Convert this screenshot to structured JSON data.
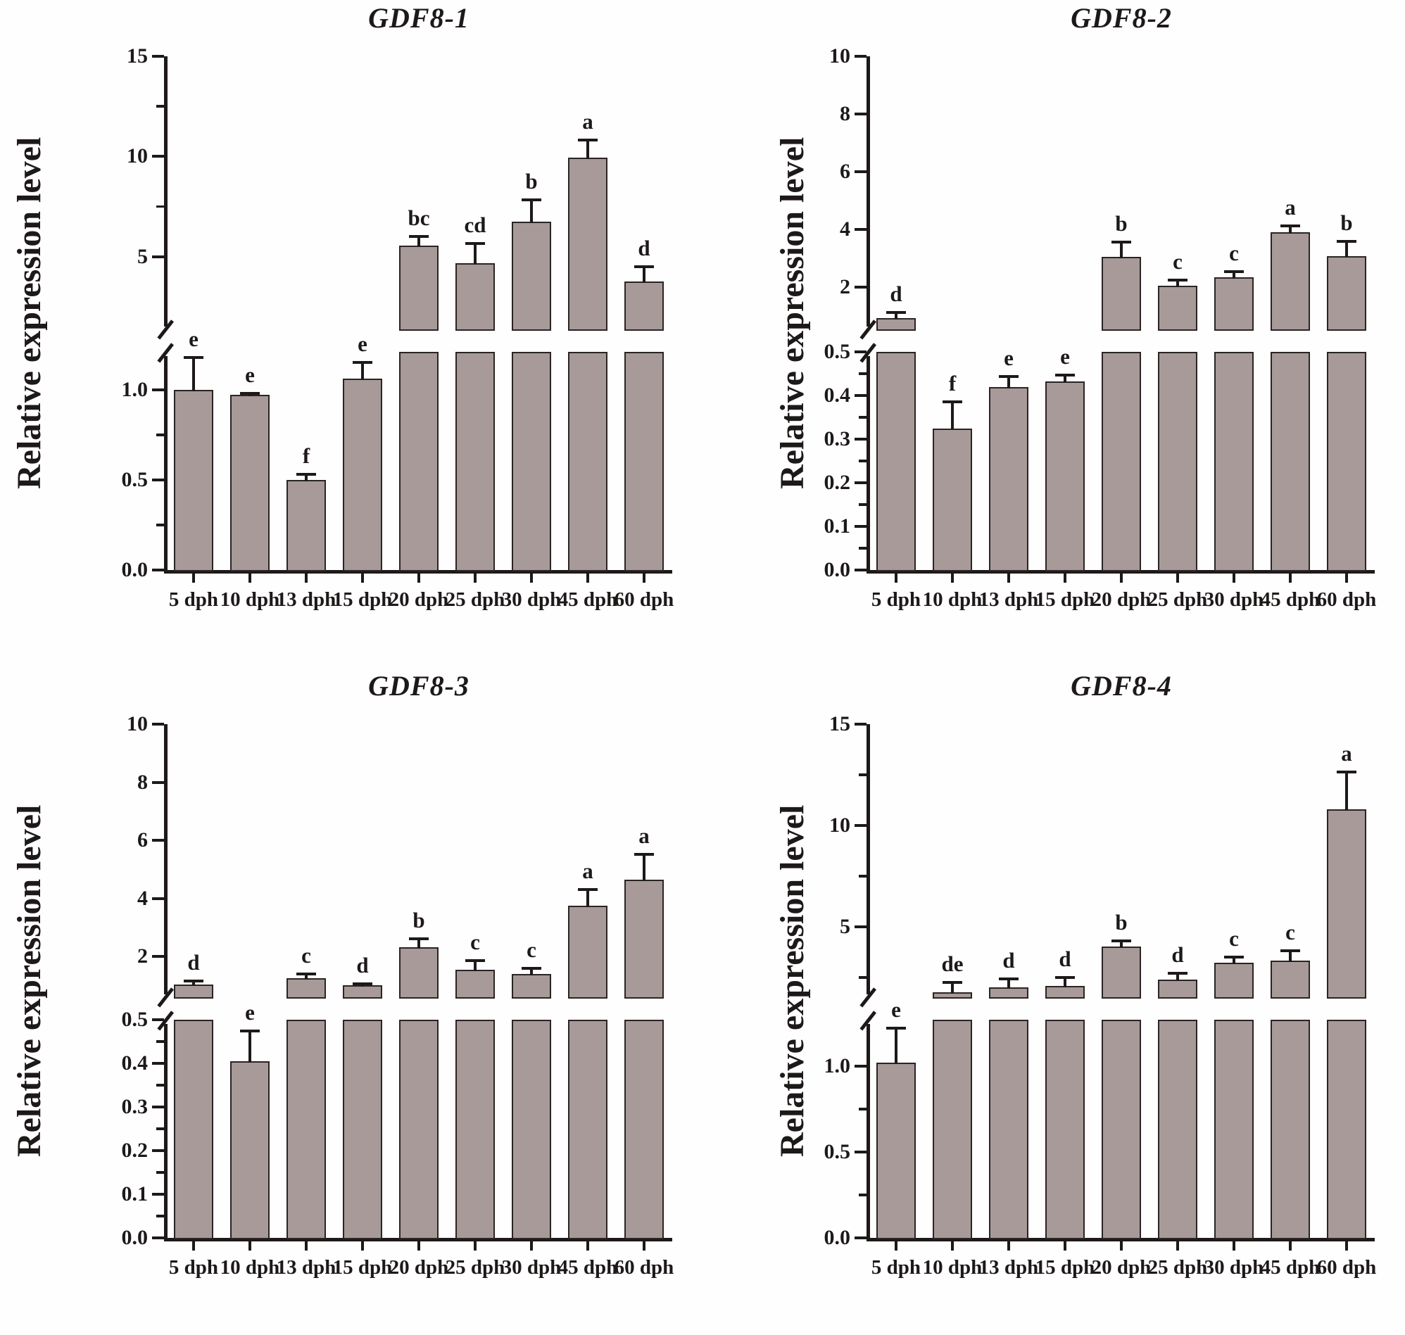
{
  "figure": {
    "type": "multi-panel-bar-figure",
    "background": "#fefefe",
    "text_color": "#1e1919",
    "bar_fill": "#a79a98",
    "bar_border": "#2b2424"
  },
  "chart_data": [
    {
      "type": "bar",
      "title": "GDF8-1",
      "ylabel": "Relative expression level",
      "xlabel": "",
      "categories": [
        "5 dph",
        "10 dph",
        "13 dph",
        "15 dph",
        "20 dph",
        "25 dph",
        "30 dph",
        "45 dph",
        "60 dph"
      ],
      "values": [
        1.0,
        0.97,
        0.5,
        1.06,
        5.55,
        4.68,
        6.73,
        9.95,
        3.76
      ],
      "error_top": [
        1.18,
        0.98,
        0.53,
        1.15,
        6.02,
        5.65,
        7.83,
        10.82,
        4.5
      ],
      "sig_letters": [
        "e",
        "e",
        "f",
        "e",
        "bc",
        "cd",
        "b",
        "a",
        "d"
      ],
      "grid": false,
      "legend": "none",
      "broken_axis": {
        "lower": {
          "min": 0,
          "max": 1.21,
          "tick_values": [
            0,
            0.5,
            1.0
          ],
          "tick_labels": [
            "0.0",
            "0.5",
            "1.0"
          ],
          "minor_ticks": [
            0.25,
            0.75
          ]
        },
        "upper": {
          "min": 1.3,
          "max": 15,
          "tick_values": [
            5,
            10,
            15
          ],
          "tick_labels": [
            "5",
            "10",
            "15"
          ],
          "minor_ticks": [
            7.5,
            12.5
          ]
        }
      }
    },
    {
      "type": "bar",
      "title": "GDF8-2",
      "ylabel": "Relative expression level",
      "xlabel": "",
      "categories": [
        "5 dph",
        "10 dph",
        "13 dph",
        "15 dph",
        "20 dph",
        "25 dph",
        "30 dph",
        "45 dph",
        "60 dph"
      ],
      "values": [
        0.95,
        0.325,
        0.42,
        0.433,
        3.05,
        2.05,
        2.35,
        3.92,
        3.08
      ],
      "error_top": [
        1.13,
        0.385,
        0.443,
        0.446,
        3.56,
        2.26,
        2.55,
        4.12,
        3.6
      ],
      "sig_letters": [
        "d",
        "f",
        "e",
        "e",
        "b",
        "c",
        "c",
        "a",
        "b"
      ],
      "grid": false,
      "legend": "none",
      "broken_axis": {
        "lower": {
          "min": 0,
          "max": 0.5,
          "tick_values": [
            0,
            0.1,
            0.2,
            0.3,
            0.4,
            0.5
          ],
          "tick_labels": [
            "0.0",
            "0.1",
            "0.2",
            "0.3",
            "0.4",
            "0.5"
          ],
          "minor_ticks": [
            0.05,
            0.15,
            0.25,
            0.35,
            0.45
          ]
        },
        "upper": {
          "min": 0.5,
          "max": 10,
          "tick_values": [
            2,
            4,
            6,
            8,
            10
          ],
          "tick_labels": [
            "2",
            "4",
            "6",
            "8",
            "10"
          ],
          "minor_ticks": []
        }
      }
    },
    {
      "type": "bar",
      "title": "GDF8-3",
      "ylabel": "Relative expression level",
      "xlabel": "",
      "categories": [
        "5 dph",
        "10 dph",
        "13 dph",
        "15 dph",
        "20 dph",
        "25 dph",
        "30 dph",
        "45 dph",
        "60 dph"
      ],
      "values": [
        1.03,
        0.405,
        1.25,
        1.01,
        2.33,
        1.55,
        1.4,
        3.74,
        4.65
      ],
      "error_top": [
        1.15,
        0.475,
        1.4,
        1.06,
        2.62,
        1.87,
        1.58,
        4.3,
        5.52
      ],
      "sig_letters": [
        "d",
        "e",
        "c",
        "d",
        "b",
        "c",
        "c",
        "a",
        "a"
      ],
      "grid": false,
      "legend": "none",
      "broken_axis": {
        "lower": {
          "min": 0,
          "max": 0.5,
          "tick_values": [
            0,
            0.1,
            0.2,
            0.3,
            0.4,
            0.5
          ],
          "tick_labels": [
            "0.0",
            "0.1",
            "0.2",
            "0.3",
            "0.4",
            "0.5"
          ],
          "minor_ticks": [
            0.05,
            0.15,
            0.25,
            0.35,
            0.45
          ]
        },
        "upper": {
          "min": 0.55,
          "max": 10,
          "tick_values": [
            2,
            4,
            6,
            8,
            10
          ],
          "tick_labels": [
            "2",
            "4",
            "6",
            "8",
            "10"
          ],
          "minor_ticks": []
        }
      }
    },
    {
      "type": "bar",
      "title": "GDF8-4",
      "ylabel": "Relative expression level",
      "xlabel": "",
      "categories": [
        "5 dph",
        "10 dph",
        "13 dph",
        "15 dph",
        "20 dph",
        "25 dph",
        "30 dph",
        "45 dph",
        "60 dph"
      ],
      "values": [
        1.02,
        1.75,
        2.0,
        2.06,
        4.01,
        2.4,
        3.21,
        3.32,
        10.8
      ],
      "error_top": [
        1.22,
        2.26,
        2.41,
        2.5,
        4.3,
        2.7,
        3.5,
        3.8,
        12.65
      ],
      "sig_letters": [
        "e",
        "de",
        "d",
        "d",
        "b",
        "d",
        "c",
        "c",
        "a"
      ],
      "grid": false,
      "legend": "none",
      "broken_axis": {
        "lower": {
          "min": 0,
          "max": 1.27,
          "tick_values": [
            0,
            0.5,
            1.0
          ],
          "tick_labels": [
            "0.0",
            "0.5",
            "1.0"
          ],
          "minor_ticks": [
            0.25,
            0.75
          ]
        },
        "upper": {
          "min": 1.45,
          "max": 15,
          "tick_values": [
            5,
            10,
            15
          ],
          "tick_labels": [
            "5",
            "10",
            "15"
          ],
          "minor_ticks": [
            2.5,
            7.5,
            12.5
          ]
        }
      }
    }
  ]
}
